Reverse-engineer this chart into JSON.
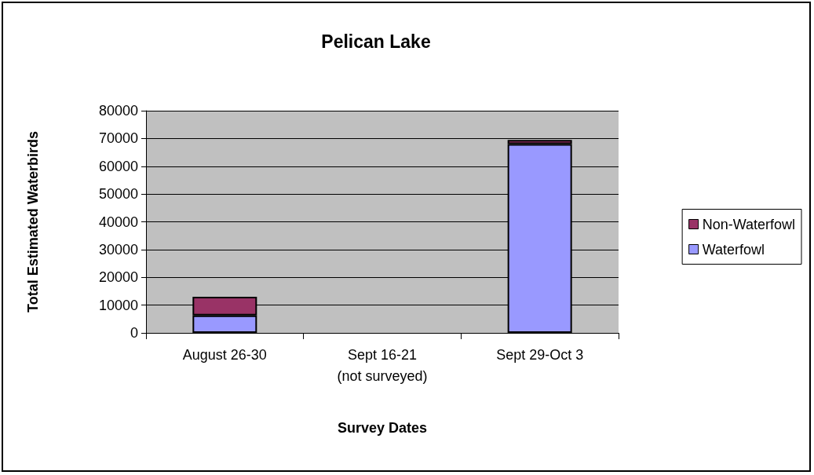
{
  "chart_data": {
    "type": "bar",
    "title": "Pelican Lake",
    "xlabel": "Survey Dates",
    "ylabel": "Total Estimated Waterbirds",
    "categories": [
      "August 26-30",
      "Sept 16-21\n(not surveyed)",
      "Sept 29-Oct 3"
    ],
    "series": [
      {
        "name": "Waterfowl",
        "color": "#9999ff",
        "values": [
          6300,
          null,
          68000
        ]
      },
      {
        "name": "Non-Waterfowl",
        "color": "#993366",
        "values": [
          6700,
          null,
          1500
        ]
      }
    ],
    "stacked": true,
    "ylim": [
      0,
      80000
    ],
    "yticks": [
      0,
      10000,
      20000,
      30000,
      40000,
      50000,
      60000,
      70000,
      80000
    ],
    "grid": "y",
    "legend": "right"
  }
}
